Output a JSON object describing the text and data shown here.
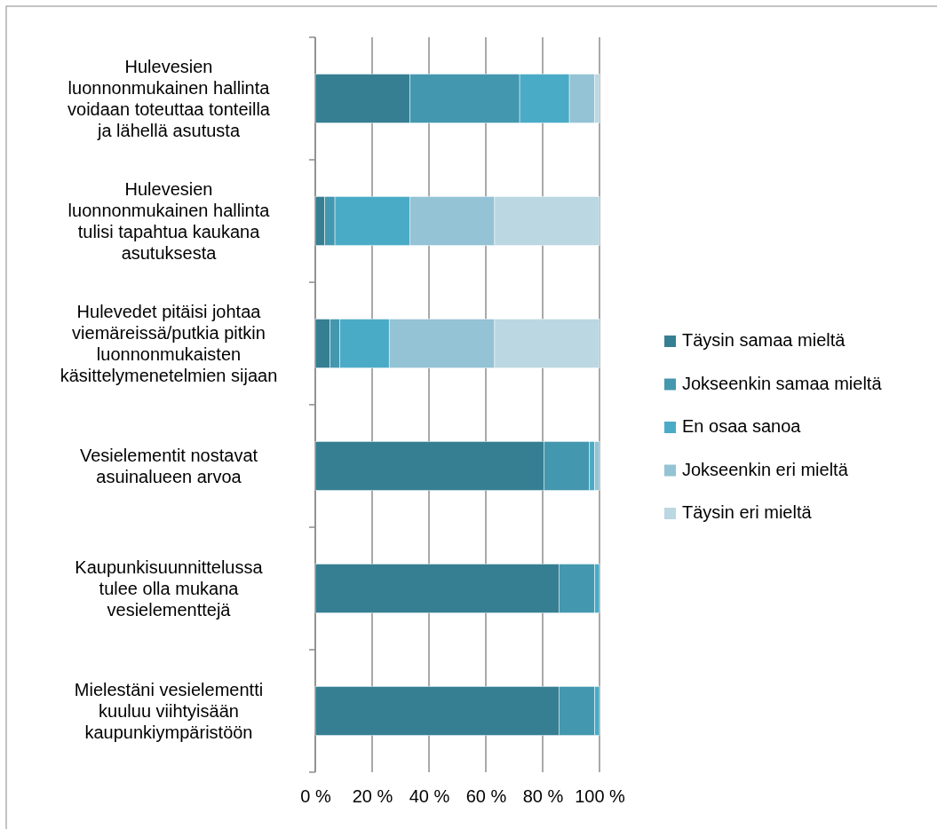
{
  "chart_data": {
    "type": "bar",
    "orientation": "horizontal",
    "stacked": true,
    "categories": [
      "Hulevesien luonnonmukainen hallinta voidaan toteuttaa tonteilla ja lähellä asutusta",
      "Hulevesien luonnonmukainen hallinta tulisi tapahtua kaukana asutuksesta",
      "Hulevedet pitäisi johtaa viemäreissä/putkia pitkin luonnonmukaisten käsittelymenetelmien sijaan",
      "Vesielementit nostavat asuinalueen arvoa",
      "Kaupunkisuunnittelussa tulee olla mukana vesielementtejä",
      "Mielestäni vesielementti kuuluu viihtyisään kaupunkiympäristöön"
    ],
    "series": [
      {
        "name": "Täysin samaa mieltä",
        "color": "#367f93",
        "values": [
          33.3,
          3.3,
          5.2,
          80.4,
          85.7,
          85.7
        ]
      },
      {
        "name": "Jokseenkin samaa mieltä",
        "color": "#4397ae",
        "values": [
          38.6,
          3.6,
          3.4,
          16.1,
          12.6,
          12.6
        ]
      },
      {
        "name": "En osaa sanoa",
        "color": "#4aabc6",
        "values": [
          17.5,
          26.3,
          17.4,
          1.8,
          1.7,
          1.7
        ]
      },
      {
        "name": "Jokseenkin eri mieltä",
        "color": "#93c3d4",
        "values": [
          8.8,
          29.9,
          37.1,
          1.7,
          0,
          0
        ]
      },
      {
        "name": "Täysin eri mieltä",
        "color": "#bbd7e2",
        "values": [
          1.8,
          36.9,
          36.9,
          0,
          0,
          0
        ]
      }
    ],
    "xlim": [
      0,
      100
    ],
    "xticks": [
      {
        "value": 0,
        "label": "0 %"
      },
      {
        "value": 20,
        "label": "20 %"
      },
      {
        "value": 40,
        "label": "40 %"
      },
      {
        "value": 60,
        "label": "60 %"
      },
      {
        "value": 80,
        "label": "80 %"
      },
      {
        "value": 100,
        "label": "100 %"
      }
    ],
    "grid": "x",
    "legend": "right"
  }
}
